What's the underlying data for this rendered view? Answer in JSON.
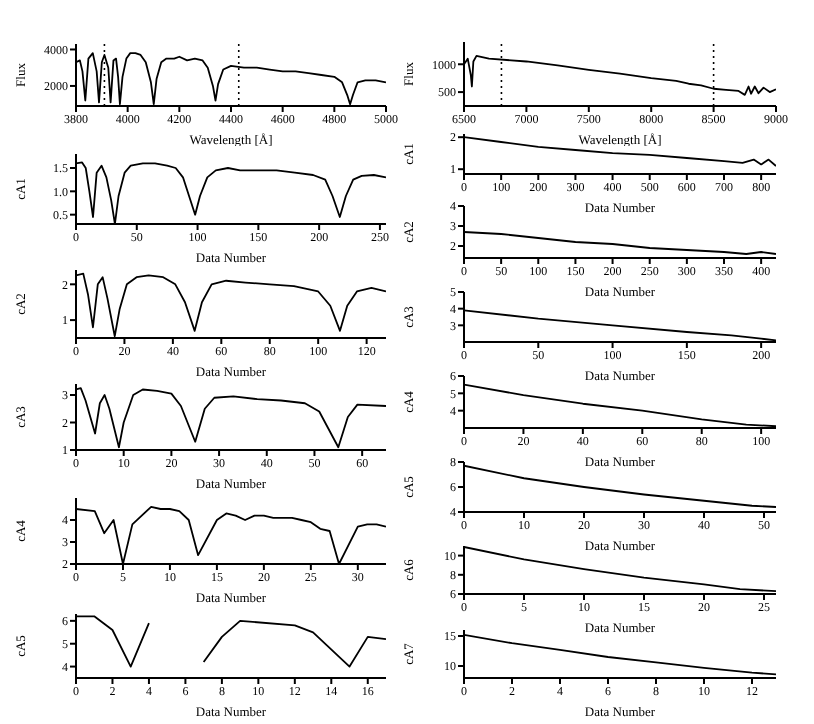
{
  "chart_data": [
    {
      "type": "line",
      "xlabel": "Wavelength [Å]",
      "ylabel": "Flux",
      "color": "#000000",
      "marker": "none",
      "line_style": "solid",
      "xlim": [
        3800,
        5000
      ],
      "xticks": [
        3800,
        4000,
        4200,
        4400,
        4600,
        4800,
        5000
      ],
      "ylim": [
        900,
        4300
      ],
      "yticks": [
        2000,
        4000
      ],
      "ref_lines": [
        {
          "axis": "x",
          "value": 3910,
          "color": "#000000",
          "line_style": "dotted"
        },
        {
          "axis": "x",
          "value": 4430,
          "color": "#000000",
          "line_style": "dotted"
        }
      ],
      "x": [
        3800,
        3815,
        3825,
        3836,
        3848,
        3865,
        3880,
        3889,
        3900,
        3910,
        3925,
        3934,
        3945,
        3955,
        3963,
        3970,
        3980,
        3995,
        4010,
        4030,
        4050,
        4070,
        4090,
        4101,
        4112,
        4130,
        4150,
        4180,
        4200,
        4230,
        4260,
        4290,
        4310,
        4330,
        4340,
        4350,
        4370,
        4400,
        4450,
        4500,
        4550,
        4600,
        4650,
        4700,
        4750,
        4800,
        4830,
        4850,
        4861,
        4872,
        4890,
        4920,
        4960,
        5000
      ],
      "values": [
        3300,
        3400,
        2800,
        1200,
        3500,
        3800,
        2800,
        1100,
        3300,
        3700,
        3000,
        1100,
        3400,
        3500,
        2500,
        1000,
        2500,
        3500,
        3800,
        3800,
        3700,
        3300,
        2200,
        1000,
        2400,
        3300,
        3500,
        3500,
        3600,
        3400,
        3500,
        3400,
        3000,
        2000,
        1200,
        2100,
        2900,
        3100,
        3000,
        3000,
        2900,
        2800,
        2800,
        2700,
        2600,
        2500,
        2200,
        1500,
        1000,
        1500,
        2200,
        2300,
        2300,
        2200
      ]
    },
    {
      "type": "line",
      "xlabel": "Wavelength [Å]",
      "ylabel": "Flux",
      "color": "#000000",
      "marker": "none",
      "line_style": "solid",
      "xlim": [
        6500,
        9000
      ],
      "xticks": [
        6500,
        7000,
        7500,
        8000,
        8500,
        9000
      ],
      "ylim": [
        250,
        1400
      ],
      "yticks": [
        500,
        1000
      ],
      "ref_lines": [
        {
          "axis": "x",
          "value": 6800,
          "color": "#000000",
          "line_style": "dotted"
        },
        {
          "axis": "x",
          "value": 8500,
          "color": "#000000",
          "line_style": "dotted"
        }
      ],
      "x": [
        6500,
        6530,
        6555,
        6563,
        6575,
        6600,
        6700,
        7000,
        7250,
        7500,
        7750,
        8000,
        8200,
        8300,
        8400,
        8500,
        8600,
        8700,
        8750,
        8780,
        8800,
        8830,
        8860,
        8900,
        8950,
        9000
      ],
      "values": [
        1000,
        1100,
        800,
        600,
        1050,
        1150,
        1100,
        1050,
        980,
        900,
        830,
        750,
        700,
        650,
        620,
        560,
        540,
        520,
        450,
        600,
        470,
        600,
        480,
        580,
        500,
        550
      ]
    },
    {
      "type": "line",
      "xlabel": "Data Number",
      "ylabel": "cA1",
      "color": "#000000",
      "marker": "none",
      "line_style": "solid",
      "xlim": [
        0,
        255
      ],
      "xticks": [
        0,
        50,
        100,
        150,
        200,
        250
      ],
      "ylim": [
        0.3,
        1.8
      ],
      "yticks": [
        {
          "value": 0.5,
          "label": "0.5"
        },
        {
          "value": 1,
          "label": "1.0"
        },
        {
          "value": 1.5,
          "label": "1.5"
        }
      ],
      "x": [
        0,
        5,
        8,
        11,
        14,
        17,
        21,
        25,
        29,
        32,
        35,
        40,
        45,
        55,
        65,
        75,
        82,
        88,
        93,
        98,
        102,
        108,
        115,
        125,
        135,
        150,
        165,
        180,
        195,
        205,
        211,
        217,
        222,
        228,
        235,
        245,
        255
      ],
      "values": [
        1.6,
        1.62,
        1.5,
        1.0,
        0.45,
        1.4,
        1.55,
        1.3,
        0.8,
        0.3,
        0.9,
        1.4,
        1.55,
        1.6,
        1.6,
        1.55,
        1.5,
        1.3,
        0.9,
        0.5,
        0.9,
        1.3,
        1.45,
        1.5,
        1.45,
        1.45,
        1.45,
        1.4,
        1.35,
        1.25,
        0.9,
        0.45,
        0.9,
        1.25,
        1.33,
        1.35,
        1.3
      ]
    },
    {
      "type": "line",
      "xlabel": "Data Number",
      "ylabel": "cA2",
      "color": "#000000",
      "marker": "none",
      "line_style": "solid",
      "xlim": [
        0,
        128
      ],
      "xticks": [
        0,
        20,
        40,
        60,
        80,
        100,
        120
      ],
      "ylim": [
        0.5,
        2.4
      ],
      "yticks": [
        1,
        2
      ],
      "x": [
        0,
        3,
        5,
        7,
        9,
        11,
        13,
        16,
        18,
        21,
        25,
        30,
        36,
        41,
        45,
        49,
        52,
        56,
        62,
        70,
        80,
        90,
        100,
        105,
        109,
        112,
        116,
        122,
        128
      ],
      "values": [
        2.25,
        2.3,
        1.7,
        0.8,
        2.0,
        2.2,
        1.6,
        0.55,
        1.3,
        2.0,
        2.2,
        2.25,
        2.2,
        2.0,
        1.5,
        0.7,
        1.5,
        2.0,
        2.1,
        2.05,
        2.0,
        1.95,
        1.8,
        1.4,
        0.7,
        1.4,
        1.8,
        1.9,
        1.8
      ]
    },
    {
      "type": "line",
      "xlabel": "Data Number",
      "ylabel": "cA3",
      "color": "#000000",
      "marker": "none",
      "line_style": "solid",
      "xlim": [
        0,
        65
      ],
      "xticks": [
        0,
        10,
        20,
        30,
        40,
        50,
        60
      ],
      "ylim": [
        1,
        3.4
      ],
      "yticks": [
        1,
        2,
        3
      ],
      "x": [
        0,
        1,
        2,
        4,
        5,
        6,
        7,
        9,
        10,
        12,
        14,
        17,
        20,
        22,
        25,
        27,
        29,
        33,
        38,
        43,
        48,
        51,
        55,
        57,
        59,
        65
      ],
      "values": [
        3.2,
        3.25,
        2.8,
        1.6,
        2.7,
        3.0,
        2.5,
        1.1,
        2.0,
        3.0,
        3.2,
        3.15,
        3.05,
        2.6,
        1.3,
        2.5,
        2.9,
        2.95,
        2.85,
        2.8,
        2.7,
        2.4,
        1.1,
        2.2,
        2.65,
        2.6
      ]
    },
    {
      "type": "line",
      "xlabel": "Data Number",
      "ylabel": "cA4",
      "color": "#000000",
      "marker": "none",
      "line_style": "solid",
      "xlim": [
        0,
        33
      ],
      "xticks": [
        0,
        5,
        10,
        15,
        20,
        25,
        30
      ],
      "ylim": [
        2,
        5
      ],
      "yticks": [
        2,
        3,
        4
      ],
      "x": [
        0,
        2,
        3,
        4,
        5,
        6,
        8,
        9,
        10,
        11,
        12,
        13,
        15,
        16,
        17,
        18,
        19,
        20,
        21,
        23,
        24,
        25,
        26,
        27,
        28,
        30,
        31,
        32,
        33
      ],
      "values": [
        4.5,
        4.4,
        3.4,
        4.0,
        2.0,
        3.8,
        4.6,
        4.5,
        4.5,
        4.4,
        4.0,
        2.4,
        4.0,
        4.3,
        4.2,
        4.0,
        4.2,
        4.2,
        4.1,
        4.1,
        4.0,
        3.9,
        3.6,
        3.5,
        2.0,
        3.7,
        3.8,
        3.8,
        3.7
      ]
    },
    {
      "type": "line",
      "xlabel": "Data Number",
      "ylabel": "cA5",
      "color": "#000000",
      "marker": "none",
      "line_style": "solid",
      "xlim": [
        0,
        17
      ],
      "xticks": [
        0,
        2,
        4,
        6,
        8,
        10,
        12,
        14,
        16
      ],
      "ylim": [
        3.5,
        6.3
      ],
      "yticks": [
        4,
        5,
        6
      ],
      "x": [
        0,
        1,
        2,
        3,
        4,
        5,
        6,
        7,
        8,
        9,
        12,
        13,
        15,
        16,
        17
      ],
      "values": [
        6.2,
        6.2,
        5.6,
        4.0,
        5.9,
        null,
        null,
        4.2,
        5.3,
        6.0,
        5.8,
        5.5,
        4.0,
        5.3,
        5.2
      ]
    },
    {
      "type": "line",
      "xlabel": "Data Number",
      "ylabel": "cA1",
      "color": "#000000",
      "marker": "none",
      "line_style": "solid",
      "xlim": [
        0,
        840
      ],
      "xticks": [
        0,
        100,
        200,
        300,
        400,
        500,
        600,
        700,
        800
      ],
      "ylim": [
        0.85,
        2.1
      ],
      "yticks": [
        1,
        2
      ],
      "x": [
        0,
        100,
        200,
        300,
        400,
        500,
        600,
        700,
        750,
        780,
        800,
        820,
        840
      ],
      "values": [
        2.0,
        1.85,
        1.7,
        1.6,
        1.5,
        1.45,
        1.35,
        1.25,
        1.2,
        1.3,
        1.15,
        1.3,
        1.1
      ]
    },
    {
      "type": "line",
      "xlabel": "Data Number",
      "ylabel": "cA2",
      "color": "#000000",
      "marker": "none",
      "line_style": "solid",
      "xlim": [
        0,
        420
      ],
      "xticks": [
        0,
        50,
        100,
        150,
        200,
        250,
        300,
        350,
        400
      ],
      "ylim": [
        1.4,
        4
      ],
      "yticks": [
        2,
        3,
        4
      ],
      "x": [
        0,
        50,
        100,
        150,
        200,
        250,
        300,
        350,
        380,
        400,
        420
      ],
      "values": [
        2.7,
        2.6,
        2.4,
        2.2,
        2.1,
        1.9,
        1.8,
        1.7,
        1.6,
        1.7,
        1.6
      ]
    },
    {
      "type": "line",
      "xlabel": "Data Number",
      "ylabel": "cA3",
      "color": "#000000",
      "marker": "none",
      "line_style": "solid",
      "xlim": [
        0,
        210
      ],
      "xticks": [
        0,
        50,
        100,
        150,
        200
      ],
      "ylim": [
        2,
        5
      ],
      "yticks": [
        3,
        4,
        5
      ],
      "x": [
        0,
        50,
        100,
        150,
        180,
        200,
        210
      ],
      "values": [
        3.9,
        3.4,
        3.0,
        2.6,
        2.4,
        2.2,
        2.1
      ]
    },
    {
      "type": "line",
      "xlabel": "Data Number",
      "ylabel": "cA4",
      "color": "#000000",
      "marker": "none",
      "line_style": "solid",
      "xlim": [
        0,
        105
      ],
      "xticks": [
        0,
        20,
        40,
        60,
        80,
        100
      ],
      "ylim": [
        3,
        6
      ],
      "yticks": [
        4,
        5,
        6
      ],
      "x": [
        0,
        20,
        40,
        60,
        80,
        95,
        105
      ],
      "values": [
        5.5,
        4.9,
        4.4,
        4.0,
        3.5,
        3.2,
        3.1
      ]
    },
    {
      "type": "line",
      "xlabel": "Data Number",
      "ylabel": "cA5",
      "color": "#000000",
      "marker": "none",
      "line_style": "solid",
      "xlim": [
        0,
        52
      ],
      "xticks": [
        0,
        10,
        20,
        30,
        40,
        50
      ],
      "ylim": [
        4,
        8
      ],
      "yticks": [
        4,
        6,
        8
      ],
      "x": [
        0,
        10,
        20,
        30,
        40,
        48,
        52
      ],
      "values": [
        7.7,
        6.7,
        6.0,
        5.4,
        4.9,
        4.5,
        4.4
      ]
    },
    {
      "type": "line",
      "xlabel": "Data Number",
      "ylabel": "cA6",
      "color": "#000000",
      "marker": "none",
      "line_style": "solid",
      "xlim": [
        0,
        26
      ],
      "xticks": [
        0,
        5,
        10,
        15,
        20,
        25
      ],
      "ylim": [
        6,
        11
      ],
      "yticks": [
        6,
        8,
        10
      ],
      "x": [
        0,
        5,
        10,
        15,
        20,
        23,
        26
      ],
      "values": [
        10.9,
        9.6,
        8.6,
        7.7,
        7.0,
        6.5,
        6.3
      ]
    },
    {
      "type": "line",
      "xlabel": "Data Number",
      "ylabel": "cA7",
      "color": "#000000",
      "marker": "none",
      "line_style": "solid",
      "xlim": [
        0,
        13
      ],
      "xticks": [
        0,
        2,
        4,
        6,
        8,
        10,
        12
      ],
      "ylim": [
        8,
        16
      ],
      "yticks": [
        10,
        15
      ],
      "x": [
        0,
        2,
        4,
        6,
        8,
        10,
        12,
        13
      ],
      "values": [
        15.2,
        13.8,
        12.7,
        11.5,
        10.6,
        9.7,
        8.9,
        8.6
      ]
    }
  ]
}
